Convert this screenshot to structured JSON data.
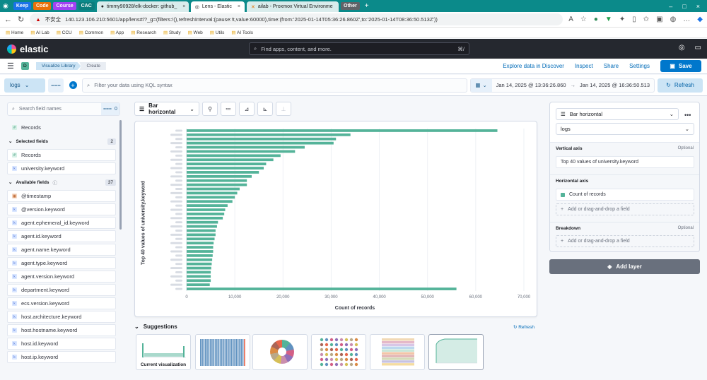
{
  "browser": {
    "bookmark_chips": [
      {
        "label": "Keep",
        "color": "#1a73e8"
      },
      {
        "label": "Code",
        "color": "#e8710a"
      },
      {
        "label": "Course",
        "color": "#a142f4"
      },
      {
        "label": "CAC",
        "color": "#0b7d7d"
      }
    ],
    "tabs": [
      {
        "label": "timmy90928/elk-docker: github_",
        "active": false
      },
      {
        "label": "Lens - Elastic",
        "active": true
      },
      {
        "label": "ailab - Proxmox Virtual Environme",
        "active": false
      }
    ],
    "other_chip": "Other",
    "insecure_label": "不安全",
    "url": "140.123.106.210:5601/app/lens#/?_g=(filters:!(),refreshInterval:(pause:!t,value:60000),time:(from:'2025-01-14T05:36:26.860Z',to:'2025-01-14T08:36:50.513Z'))",
    "bookmarks": [
      "Home",
      "AI Lab",
      "CCU",
      "Common",
      "App",
      "Research",
      "Study",
      "Web",
      "Utils",
      "AI Tools"
    ]
  },
  "kibana": {
    "brand": "elastic",
    "global_search_placeholder": "Find apps, content, and more.",
    "global_search_shortcut": "⌘/",
    "space_badge": "D",
    "breadcrumbs": [
      "Visualize Library",
      "Create"
    ],
    "top_links": [
      "Explore data in Discover",
      "Inspect",
      "Share",
      "Settings"
    ],
    "save_label": "Save"
  },
  "query": {
    "data_view": "logs",
    "kql_placeholder": "Filter your data using KQL syntax",
    "time_from": "Jan 14, 2025 @ 13:36:26.860",
    "time_arrow": "→",
    "time_to": "Jan 14, 2025 @ 16:36:50.513",
    "refresh_label": "Refresh"
  },
  "fields": {
    "search_placeholder": "Search field names",
    "filter_count": "0",
    "records_top": "Records",
    "selected_label": "Selected fields",
    "selected_count": "2",
    "selected": [
      "Records",
      "university.keyword"
    ],
    "available_label": "Available fields",
    "available_count": "37",
    "available": [
      {
        "name": "@timestamp",
        "type": "date"
      },
      {
        "name": "@version.keyword",
        "type": "keyword"
      },
      {
        "name": "agent.ephemeral_id.keyword",
        "type": "keyword"
      },
      {
        "name": "agent.id.keyword",
        "type": "keyword"
      },
      {
        "name": "agent.name.keyword",
        "type": "keyword"
      },
      {
        "name": "agent.type.keyword",
        "type": "keyword"
      },
      {
        "name": "agent.version.keyword",
        "type": "keyword"
      },
      {
        "name": "department.keyword",
        "type": "keyword"
      },
      {
        "name": "ecs.version.keyword",
        "type": "keyword"
      },
      {
        "name": "host.architecture.keyword",
        "type": "keyword"
      },
      {
        "name": "host.hostname.keyword",
        "type": "keyword"
      },
      {
        "name": "host.id.keyword",
        "type": "keyword"
      },
      {
        "name": "host.ip.keyword",
        "type": "keyword"
      }
    ]
  },
  "workspace": {
    "vis_type": "Bar horizontal"
  },
  "chart_data": {
    "type": "bar",
    "orientation": "horizontal",
    "ylabel": "Top 40 values of university.keyword",
    "xlabel": "Count of records",
    "xlim": [
      0,
      70000
    ],
    "xticks": [
      "0",
      "10,000",
      "20,000",
      "30,000",
      "40,000",
      "50,000",
      "60,000",
      "70,000"
    ],
    "bar_color": "#54b399",
    "grid": true,
    "values": [
      64500,
      34000,
      31000,
      30500,
      24500,
      22500,
      19500,
      18000,
      16500,
      16000,
      15000,
      13500,
      12500,
      12500,
      11000,
      10500,
      10000,
      9500,
      8500,
      8000,
      7800,
      7500,
      6500,
      6300,
      6000,
      6000,
      5800,
      5600,
      5500,
      5500,
      5400,
      5300,
      5200,
      5100,
      5000,
      5000,
      5000,
      4800,
      56000
    ]
  },
  "suggestions": {
    "title": "Suggestions",
    "refresh": "Refresh",
    "current_caption": "Current visualization"
  },
  "config": {
    "vis_type": "Bar horizontal",
    "data_view": "logs",
    "vertical_axis_label": "Vertical axis",
    "vertical_axis_optional": "Optional",
    "vertical_axis_value": "Top 40 values of university.keyword",
    "horizontal_axis_label": "Horizontal axis",
    "horizontal_axis_value": "Count of records",
    "add_field": "Add or drag-and-drop a field",
    "breakdown_label": "Breakdown",
    "breakdown_optional": "Optional",
    "add_layer": "Add layer"
  }
}
